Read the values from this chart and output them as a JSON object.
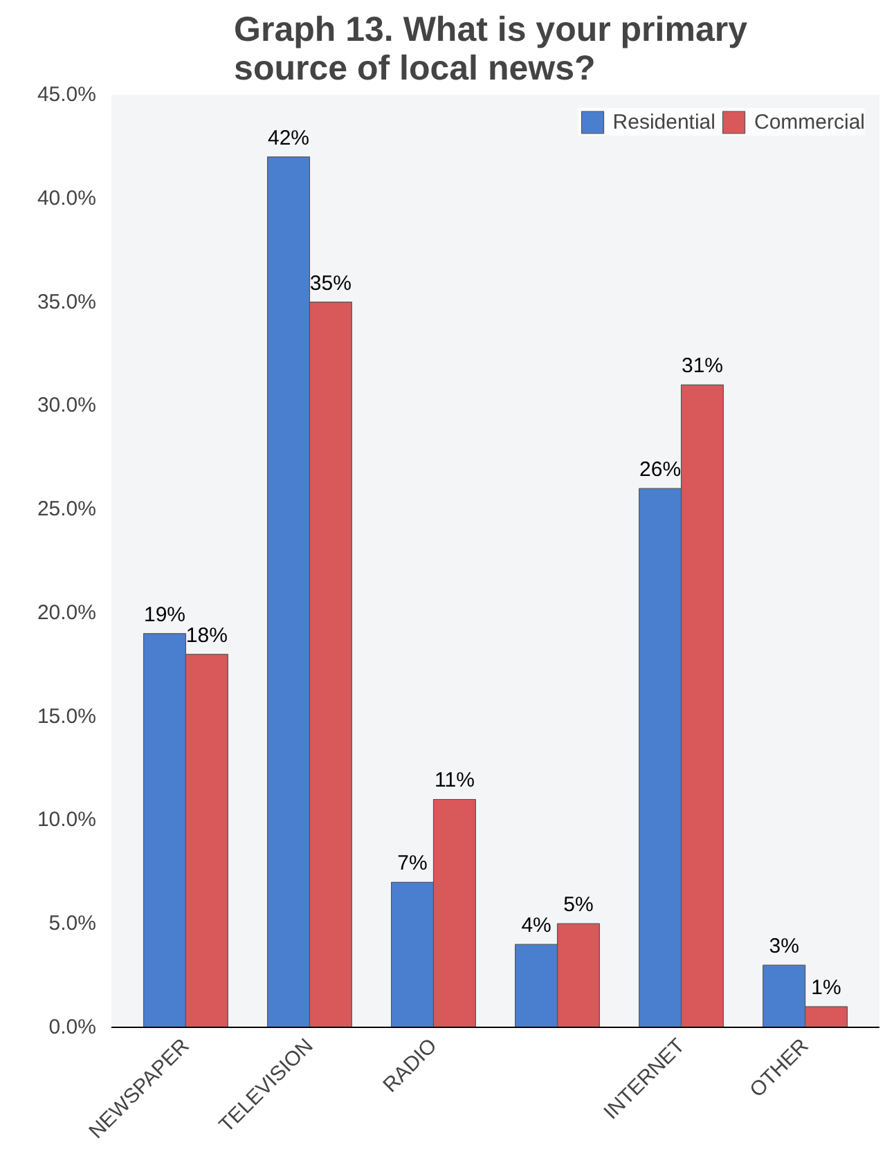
{
  "chart_data": {
    "type": "bar",
    "title": "Graph 13.  What is your primary\nsource of local news?",
    "categories": [
      "NEWSPAPER",
      "TELEVISION",
      "RADIO",
      null,
      "INTERNET",
      "OTHER"
    ],
    "series": [
      {
        "name": "Residential",
        "color": "#4a7fd0",
        "values": [
          19,
          42,
          7,
          4,
          26,
          3
        ],
        "value_labels": [
          "19%",
          "42%",
          "7%",
          "4%",
          "26%",
          "3%"
        ]
      },
      {
        "name": "Commercial",
        "color": "#d9585a",
        "values": [
          18,
          35,
          11,
          5,
          31,
          1
        ],
        "value_labels": [
          "18%",
          "35%",
          "11%",
          "5%",
          "31%",
          "1%"
        ]
      }
    ],
    "ylim": [
      0,
      45
    ],
    "yticks": [
      {
        "value": 0,
        "label": "0.0%"
      },
      {
        "value": 5,
        "label": "5.0%"
      },
      {
        "value": 10,
        "label": "10.0%"
      },
      {
        "value": 15,
        "label": "15.0%"
      },
      {
        "value": 20,
        "label": "20.0%"
      },
      {
        "value": 25,
        "label": "25.0%"
      },
      {
        "value": 30,
        "label": "30.0%"
      },
      {
        "value": 35,
        "label": "35.0%"
      },
      {
        "value": 40,
        "label": "40.0%"
      },
      {
        "value": 45,
        "label": "45.0%"
      }
    ],
    "grid": false,
    "legend": "top right"
  }
}
